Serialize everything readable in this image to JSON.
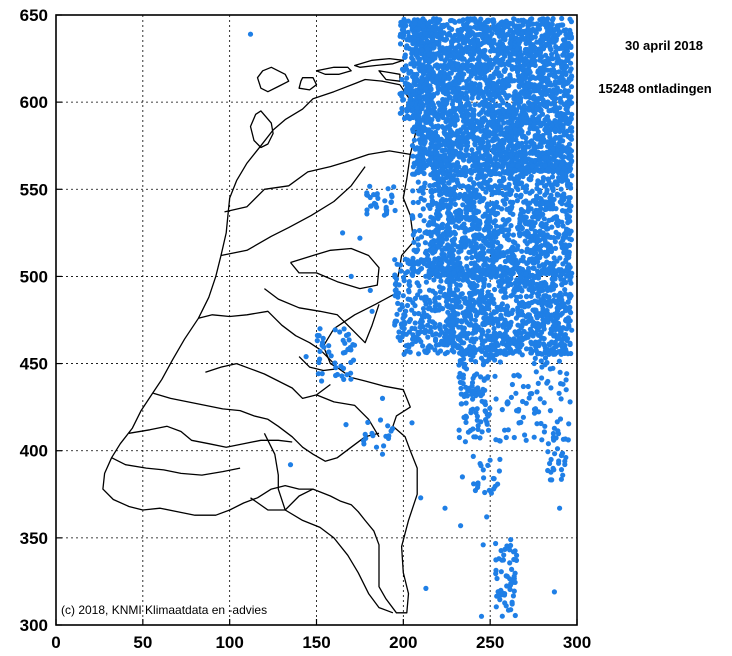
{
  "chart_data": {
    "type": "scatter",
    "title": "30 april 2018",
    "subtitle": "15248 ontladingen",
    "credit": "(c) 2018, KNMI Klimaatdata en -advies",
    "xlim": [
      0,
      300
    ],
    "ylim": [
      300,
      650
    ],
    "x_ticks": [
      "0",
      "50",
      "100",
      "150",
      "200",
      "250",
      "300"
    ],
    "y_ticks": [
      "300",
      "350",
      "400",
      "450",
      "500",
      "550",
      "600",
      "650"
    ],
    "grid": true,
    "point_color": "#1f7fe6",
    "border_color": "#000000",
    "dense_regions": [
      {
        "x": [
          205,
          297
        ],
        "y": [
          560,
          648
        ],
        "count": 2600
      },
      {
        "x": [
          198,
          215
        ],
        "y": [
          590,
          648
        ],
        "count": 180
      },
      {
        "x": [
          215,
          297
        ],
        "y": [
          500,
          565
        ],
        "count": 1100
      },
      {
        "x": [
          205,
          230
        ],
        "y": [
          500,
          560
        ],
        "count": 150
      },
      {
        "x": [
          225,
          297
        ],
        "y": [
          455,
          505
        ],
        "count": 900
      },
      {
        "x": [
          195,
          230
        ],
        "y": [
          455,
          510
        ],
        "count": 260
      },
      {
        "x": [
          232,
          250
        ],
        "y": [
          405,
          460
        ],
        "count": 110
      },
      {
        "x": [
          250,
          297
        ],
        "y": [
          405,
          458
        ],
        "count": 90
      },
      {
        "x": [
          283,
          294
        ],
        "y": [
          383,
          410
        ],
        "count": 25
      },
      {
        "x": [
          240,
          256
        ],
        "y": [
          375,
          398
        ],
        "count": 22
      },
      {
        "x": [
          253,
          266
        ],
        "y": [
          305,
          350
        ],
        "count": 55
      },
      {
        "x": [
          178,
          196
        ],
        "y": [
          535,
          552
        ],
        "count": 30
      },
      {
        "x": [
          150,
          172
        ],
        "y": [
          440,
          470
        ],
        "count": 45
      },
      {
        "x": [
          176,
          195
        ],
        "y": [
          400,
          418
        ],
        "count": 16
      }
    ],
    "isolated_points": [
      {
        "x": 112,
        "y": 639
      },
      {
        "x": 135,
        "y": 392
      },
      {
        "x": 213,
        "y": 321
      },
      {
        "x": 287,
        "y": 319
      },
      {
        "x": 290,
        "y": 367
      },
      {
        "x": 170,
        "y": 500
      },
      {
        "x": 165,
        "y": 525
      },
      {
        "x": 181,
        "y": 492
      },
      {
        "x": 167,
        "y": 415
      },
      {
        "x": 224,
        "y": 367
      },
      {
        "x": 246,
        "y": 346
      },
      {
        "x": 245,
        "y": 305
      },
      {
        "x": 205,
        "y": 416
      },
      {
        "x": 188,
        "y": 430
      },
      {
        "x": 175,
        "y": 522
      },
      {
        "x": 182,
        "y": 480
      },
      {
        "x": 210,
        "y": 373
      },
      {
        "x": 234,
        "y": 385
      },
      {
        "x": 296,
        "y": 428
      },
      {
        "x": 188,
        "y": 398
      },
      {
        "x": 144,
        "y": 454
      },
      {
        "x": 152,
        "y": 470
      },
      {
        "x": 233,
        "y": 357
      },
      {
        "x": 248,
        "y": 362
      },
      {
        "x": 293,
        "y": 394
      }
    ],
    "outline": [
      [
        [
          198,
          610
        ],
        [
          188,
          612
        ],
        [
          178,
          613
        ],
        [
          173,
          611
        ],
        [
          160,
          606
        ],
        [
          148,
          602
        ],
        [
          142,
          596
        ],
        [
          132,
          590
        ],
        [
          125,
          584
        ],
        [
          118,
          575
        ],
        [
          110,
          565
        ],
        [
          104,
          555
        ],
        [
          100,
          545
        ],
        [
          99,
          535
        ],
        [
          98,
          525
        ],
        [
          95,
          512
        ],
        [
          92,
          500
        ],
        [
          88,
          488
        ],
        [
          82,
          476
        ],
        [
          74,
          464
        ],
        [
          67,
          452
        ],
        [
          61,
          441
        ],
        [
          55,
          432
        ],
        [
          49,
          423
        ],
        [
          44,
          413
        ],
        [
          37,
          404
        ],
        [
          32,
          396
        ],
        [
          28,
          387
        ],
        [
          27,
          378
        ],
        [
          33,
          372
        ],
        [
          42,
          368
        ],
        [
          50,
          366
        ],
        [
          60,
          367
        ],
        [
          70,
          365
        ],
        [
          80,
          363
        ],
        [
          92,
          363
        ],
        [
          100,
          366
        ],
        [
          108,
          370
        ],
        [
          116,
          373
        ],
        [
          124,
          378
        ],
        [
          132,
          380
        ],
        [
          140,
          378
        ],
        [
          148,
          378
        ],
        [
          158,
          374
        ],
        [
          164,
          371
        ],
        [
          170,
          369
        ],
        [
          174,
          365
        ],
        [
          178,
          360
        ],
        [
          183,
          354
        ],
        [
          186,
          346
        ],
        [
          186,
          336
        ],
        [
          186,
          322
        ],
        [
          190,
          315
        ],
        [
          196,
          307
        ],
        [
          202,
          307
        ],
        [
          203,
          318
        ],
        [
          200,
          330
        ],
        [
          199,
          345
        ],
        [
          203,
          360
        ],
        [
          208,
          375
        ],
        [
          208,
          390
        ],
        [
          204,
          400
        ],
        [
          201,
          408
        ],
        [
          194,
          414
        ],
        [
          196,
          420
        ],
        [
          204,
          425
        ],
        [
          200,
          435
        ],
        [
          189,
          437
        ],
        [
          178,
          440
        ],
        [
          170,
          442
        ],
        [
          163,
          447
        ],
        [
          158,
          450
        ],
        [
          154,
          460
        ],
        [
          160,
          470
        ],
        [
          172,
          478
        ],
        [
          184,
          484
        ],
        [
          195,
          490
        ],
        [
          197,
          500
        ],
        [
          199,
          512
        ],
        [
          206,
          520
        ],
        [
          204,
          535
        ],
        [
          200,
          545
        ],
        [
          202,
          556
        ],
        [
          204,
          570
        ],
        [
          208,
          586
        ],
        [
          206,
          598
        ],
        [
          198,
          610
        ]
      ],
      [
        [
          97,
          537
        ],
        [
          110,
          540
        ],
        [
          120,
          550
        ],
        [
          134,
          552
        ],
        [
          145,
          560
        ],
        [
          158,
          563
        ],
        [
          168,
          566
        ],
        [
          180,
          570
        ],
        [
          192,
          572
        ],
        [
          204,
          570
        ]
      ],
      [
        [
          95,
          512
        ],
        [
          110,
          515
        ],
        [
          124,
          523
        ],
        [
          134,
          528
        ],
        [
          147,
          535
        ],
        [
          160,
          543
        ],
        [
          170,
          552
        ],
        [
          178,
          563
        ]
      ],
      [
        [
          135,
          508
        ],
        [
          148,
          512
        ],
        [
          158,
          515
        ],
        [
          170,
          516
        ],
        [
          180,
          512
        ],
        [
          186,
          505
        ],
        [
          185,
          495
        ],
        [
          175,
          493
        ],
        [
          162,
          497
        ],
        [
          150,
          502
        ],
        [
          140,
          502
        ],
        [
          135,
          508
        ]
      ],
      [
        [
          120,
          493
        ],
        [
          128,
          487
        ],
        [
          140,
          482
        ],
        [
          152,
          480
        ],
        [
          162,
          478
        ],
        [
          170,
          470
        ],
        [
          178,
          462
        ],
        [
          182,
          472
        ],
        [
          186,
          484
        ]
      ],
      [
        [
          82,
          476
        ],
        [
          90,
          478
        ],
        [
          100,
          477
        ],
        [
          110,
          478
        ],
        [
          122,
          480
        ],
        [
          130,
          472
        ],
        [
          138,
          466
        ],
        [
          146,
          462
        ],
        [
          152,
          458
        ],
        [
          160,
          450
        ]
      ],
      [
        [
          86,
          445
        ],
        [
          95,
          448
        ],
        [
          104,
          450
        ],
        [
          112,
          447
        ],
        [
          120,
          444
        ],
        [
          128,
          440
        ],
        [
          136,
          436
        ],
        [
          142,
          430
        ],
        [
          150,
          432
        ],
        [
          158,
          438
        ]
      ],
      [
        [
          56,
          433
        ],
        [
          66,
          430
        ],
        [
          76,
          428
        ],
        [
          86,
          426
        ],
        [
          96,
          424
        ],
        [
          106,
          423
        ],
        [
          114,
          420
        ],
        [
          122,
          418
        ],
        [
          128,
          414
        ],
        [
          136,
          408
        ],
        [
          142,
          402
        ],
        [
          148,
          398
        ],
        [
          155,
          394
        ],
        [
          162,
          396
        ],
        [
          170,
          402
        ],
        [
          178,
          408
        ],
        [
          186,
          410
        ]
      ],
      [
        [
          42,
          410
        ],
        [
          54,
          412
        ],
        [
          64,
          414
        ],
        [
          72,
          411
        ],
        [
          78,
          406
        ],
        [
          88,
          404
        ],
        [
          98,
          402
        ],
        [
          108,
          404
        ],
        [
          118,
          406
        ],
        [
          128,
          406
        ],
        [
          136,
          405
        ]
      ],
      [
        [
          32,
          396
        ],
        [
          40,
          392
        ],
        [
          52,
          390
        ],
        [
          62,
          389
        ],
        [
          72,
          387
        ],
        [
          84,
          386
        ],
        [
          96,
          388
        ],
        [
          106,
          390
        ]
      ],
      [
        [
          112,
          373
        ],
        [
          122,
          366
        ],
        [
          132,
          366
        ],
        [
          140,
          374
        ],
        [
          148,
          378
        ]
      ],
      [
        [
          120,
          410
        ],
        [
          126,
          398
        ],
        [
          128,
          386
        ],
        [
          128,
          378
        ],
        [
          132,
          366
        ],
        [
          142,
          360
        ],
        [
          152,
          356
        ],
        [
          160,
          350
        ],
        [
          168,
          340
        ],
        [
          174,
          330
        ],
        [
          180,
          318
        ],
        [
          186,
          310
        ],
        [
          194,
          307
        ]
      ],
      [
        [
          150,
          432
        ],
        [
          160,
          428
        ],
        [
          172,
          426
        ],
        [
          180,
          418
        ],
        [
          186,
          408
        ]
      ],
      [
        [
          140,
          454
        ],
        [
          146,
          448
        ],
        [
          154,
          446
        ],
        [
          162,
          447
        ]
      ]
    ],
    "islands": [
      [
        [
          118,
          595
        ],
        [
          124,
          588
        ],
        [
          125,
          582
        ],
        [
          122,
          576
        ],
        [
          118,
          574
        ],
        [
          114,
          578
        ],
        [
          112,
          586
        ],
        [
          115,
          593
        ],
        [
          118,
          595
        ]
      ],
      [
        [
          124,
          620
        ],
        [
          132,
          616
        ],
        [
          134,
          612
        ],
        [
          128,
          609
        ],
        [
          122,
          606
        ],
        [
          118,
          608
        ],
        [
          116,
          614
        ],
        [
          119,
          618
        ],
        [
          124,
          620
        ]
      ],
      [
        [
          142,
          614
        ],
        [
          148,
          614
        ],
        [
          150,
          610
        ],
        [
          146,
          607
        ],
        [
          140,
          608
        ],
        [
          141,
          612
        ],
        [
          142,
          614
        ]
      ],
      [
        [
          150,
          618
        ],
        [
          160,
          620
        ],
        [
          168,
          620
        ],
        [
          170,
          618
        ],
        [
          163,
          616
        ],
        [
          155,
          616
        ],
        [
          150,
          618
        ]
      ],
      [
        [
          172,
          621
        ],
        [
          182,
          624
        ],
        [
          192,
          625
        ],
        [
          200,
          624
        ],
        [
          194,
          622
        ],
        [
          184,
          621
        ],
        [
          175,
          620
        ],
        [
          172,
          621
        ]
      ],
      [
        [
          186,
          618
        ],
        [
          192,
          617
        ],
        [
          198,
          616
        ],
        [
          198,
          612
        ],
        [
          190,
          613
        ],
        [
          186,
          618
        ]
      ]
    ]
  }
}
